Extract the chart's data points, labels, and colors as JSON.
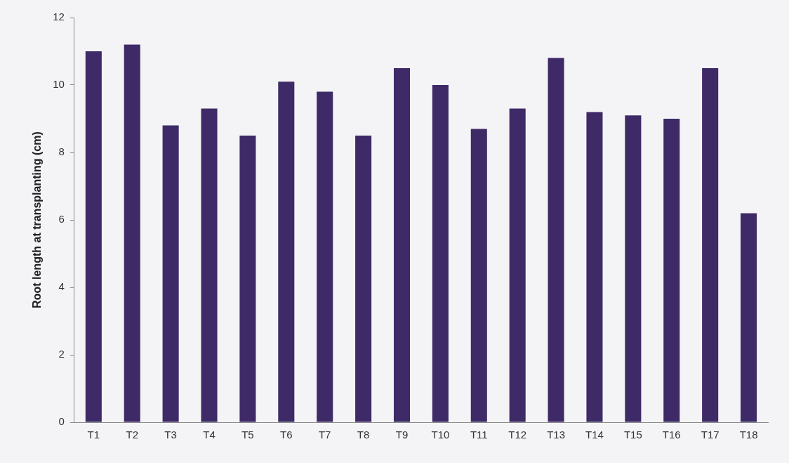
{
  "chart_data": {
    "type": "bar",
    "ylabel": "Root length at transplanting (cm)",
    "categories": [
      "T1",
      "T2",
      "T3",
      "T4",
      "T5",
      "T6",
      "T7",
      "T8",
      "T9",
      "T10",
      "T11",
      "T12",
      "T13",
      "T14",
      "T15",
      "T16",
      "T17",
      "T18"
    ],
    "values": [
      11.0,
      11.2,
      8.8,
      9.3,
      8.5,
      10.1,
      9.8,
      8.5,
      10.5,
      10.0,
      8.7,
      9.3,
      10.8,
      9.2,
      9.1,
      9.0,
      10.5,
      6.2
    ],
    "color": "#3d2a66",
    "ylim": [
      0,
      12
    ],
    "yticks": [
      0,
      2,
      4,
      6,
      8,
      10,
      12
    ],
    "grid": false,
    "legend": false
  }
}
